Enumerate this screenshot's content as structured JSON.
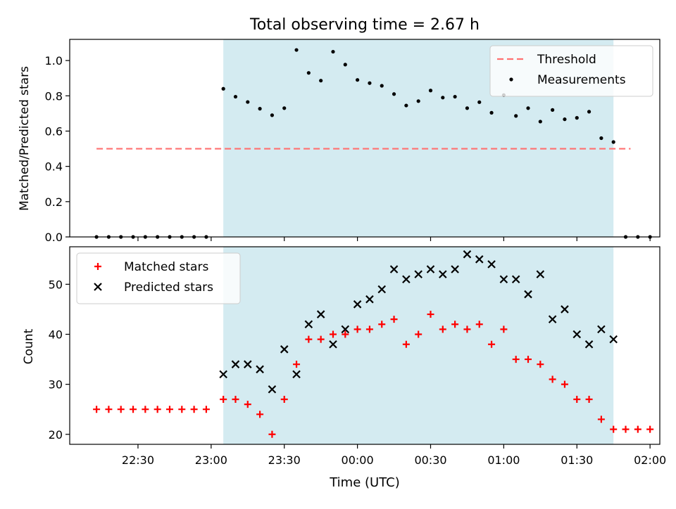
{
  "chart_data": {
    "title": "Total observing time = 2.67 h",
    "xlabel": "Time (UTC)",
    "x_ticks": [
      "22:30",
      "23:00",
      "23:30",
      "00:00",
      "00:30",
      "01:00",
      "01:30",
      "02:00"
    ],
    "x_tick_minutes": [
      1350,
      1380,
      1410,
      1440,
      1470,
      1500,
      1530,
      1560
    ],
    "x_range_minutes": [
      1322,
      1564
    ],
    "observing_window_minutes": [
      1385,
      1545
    ],
    "window_color": "#d4ebf1",
    "panels": [
      {
        "type": "scatter",
        "ylabel": "Matched/Predicted stars",
        "ylim": [
          0,
          1.12
        ],
        "y_ticks": [
          "0.0",
          "0.2",
          "0.4",
          "0.6",
          "0.8",
          "1.0"
        ],
        "y_tick_values": [
          0,
          0.2,
          0.4,
          0.6,
          0.8,
          1.0
        ],
        "legend": {
          "position": "top-right",
          "entries": [
            {
              "label": "Threshold",
              "style": "dashed-line",
              "color": "#ff7070"
            },
            {
              "label": "Measurements",
              "style": "dot",
              "color": "#000000"
            }
          ]
        },
        "threshold": {
          "value": 0.5,
          "x_from": 1333,
          "x_to": 1552
        },
        "series": [
          {
            "name": "Measurements",
            "color": "#000000",
            "x": [
              1333,
              1338,
              1343,
              1348,
              1353,
              1358,
              1363,
              1368,
              1373,
              1378,
              1385,
              1390,
              1395,
              1400,
              1405,
              1410,
              1415,
              1420,
              1425,
              1430,
              1435,
              1440,
              1445,
              1450,
              1455,
              1460,
              1465,
              1470,
              1475,
              1480,
              1485,
              1490,
              1495,
              1500,
              1505,
              1510,
              1515,
              1520,
              1525,
              1530,
              1535,
              1540,
              1545,
              1550,
              1555,
              1560
            ],
            "y": [
              0,
              0,
              0,
              0,
              0,
              0,
              0,
              0,
              0,
              0,
              0.84,
              0.795,
              0.765,
              0.727,
              0.69,
              0.73,
              1.06,
              0.93,
              0.886,
              1.05,
              0.977,
              0.89,
              0.872,
              0.857,
              0.81,
              0.745,
              0.77,
              0.83,
              0.79,
              0.795,
              0.73,
              0.764,
              0.704,
              0.804,
              0.686,
              0.73,
              0.654,
              0.72,
              0.667,
              0.675,
              0.71,
              0.56,
              0.538,
              0,
              0,
              0
            ]
          }
        ]
      },
      {
        "type": "scatter",
        "ylabel": "Count",
        "ylim": [
          18,
          57.5
        ],
        "y_ticks": [
          "20",
          "30",
          "40",
          "50"
        ],
        "y_tick_values": [
          20,
          30,
          40,
          50
        ],
        "legend": {
          "position": "top-left",
          "entries": [
            {
              "label": "Matched stars",
              "style": "plus",
              "color": "#ff0000"
            },
            {
              "label": "Predicted stars",
              "style": "cross",
              "color": "#000000"
            }
          ]
        },
        "series": [
          {
            "name": "Matched stars",
            "color": "#ff0000",
            "marker": "plus",
            "x": [
              1333,
              1338,
              1343,
              1348,
              1353,
              1358,
              1363,
              1368,
              1373,
              1378,
              1385,
              1390,
              1395,
              1400,
              1405,
              1410,
              1415,
              1420,
              1425,
              1430,
              1435,
              1440,
              1445,
              1450,
              1455,
              1460,
              1465,
              1470,
              1475,
              1480,
              1485,
              1490,
              1495,
              1500,
              1505,
              1510,
              1515,
              1520,
              1525,
              1530,
              1535,
              1540,
              1545,
              1550,
              1555,
              1560
            ],
            "y": [
              25,
              25,
              25,
              25,
              25,
              25,
              25,
              25,
              25,
              25,
              27,
              27,
              26,
              24,
              20,
              27,
              34,
              39,
              39,
              40,
              40,
              41,
              41,
              42,
              43,
              38,
              40,
              44,
              41,
              42,
              41,
              42,
              38,
              41,
              35,
              35,
              34,
              31,
              30,
              27,
              27,
              23,
              21,
              21,
              21,
              21
            ]
          },
          {
            "name": "Predicted stars",
            "color": "#000000",
            "marker": "cross",
            "x": [
              1385,
              1390,
              1395,
              1400,
              1405,
              1410,
              1415,
              1420,
              1425,
              1430,
              1435,
              1440,
              1445,
              1450,
              1455,
              1460,
              1465,
              1470,
              1475,
              1480,
              1485,
              1490,
              1495,
              1500,
              1505,
              1510,
              1515,
              1520,
              1525,
              1530,
              1535,
              1540,
              1545
            ],
            "y": [
              32,
              34,
              34,
              33,
              29,
              37,
              32,
              42,
              44,
              38,
              41,
              46,
              47,
              49,
              53,
              51,
              52,
              53,
              52,
              53,
              56,
              55,
              54,
              51,
              51,
              48,
              52,
              43,
              45,
              40,
              38,
              41,
              39
            ]
          }
        ]
      }
    ]
  }
}
